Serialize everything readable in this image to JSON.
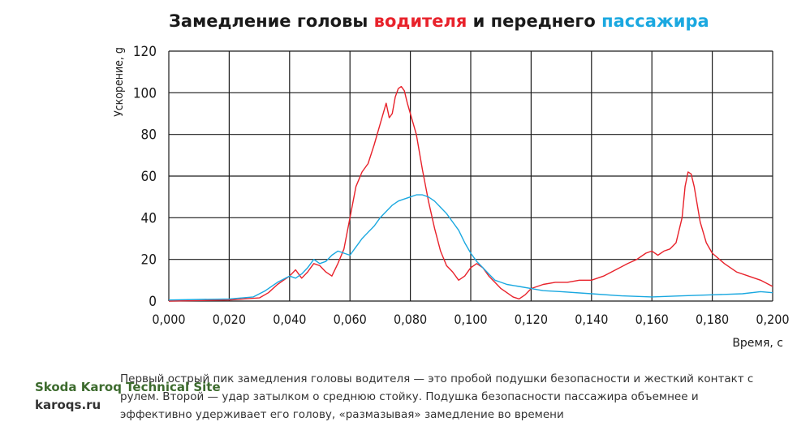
{
  "title": {
    "part1": "Замедление головы ",
    "driver_word": "водителя",
    "part2": " и переднего ",
    "passenger_word": "пассажира"
  },
  "caption": "Первый острый пик замедления головы водителя — это пробой подушки безопасности и жесткий контакт с рулем. Второй — удар затылком о среднюю стойку. Подушка безопасности пассажира объемнее и эффективно удерживает его голову, «размазывая» замедление во времени",
  "watermark": {
    "site": "Skoda Karoq Technical Site",
    "url": "karoqs.ru"
  },
  "colors": {
    "driver": "#e8222b",
    "passenger": "#1aa8e0",
    "grid": "#1a1a1a"
  },
  "chart_data": {
    "type": "line",
    "xlabel": "Время, с",
    "ylabel": "Ускорение, g",
    "xlim": [
      0,
      0.2
    ],
    "ylim": [
      0,
      120
    ],
    "grid": true,
    "x_ticks": [
      "0,000",
      "0,020",
      "0,040",
      "0,060",
      "0,080",
      "0,100",
      "0,120",
      "0,140",
      "0,160",
      "0,180",
      "0,200"
    ],
    "y_ticks": [
      "0",
      "20",
      "40",
      "60",
      "80",
      "100",
      "120"
    ],
    "series": [
      {
        "color": "#e8222b",
        "x": [
          0,
          0.02,
          0.03,
          0.033,
          0.036,
          0.038,
          0.04,
          0.042,
          0.044,
          0.046,
          0.048,
          0.05,
          0.052,
          0.054,
          0.056,
          0.058,
          0.06,
          0.062,
          0.064,
          0.066,
          0.068,
          0.07,
          0.072,
          0.073,
          0.074,
          0.075,
          0.076,
          0.077,
          0.078,
          0.079,
          0.08,
          0.082,
          0.084,
          0.086,
          0.088,
          0.09,
          0.092,
          0.094,
          0.096,
          0.098,
          0.1,
          0.102,
          0.104,
          0.106,
          0.108,
          0.11,
          0.112,
          0.114,
          0.116,
          0.118,
          0.12,
          0.124,
          0.128,
          0.132,
          0.136,
          0.14,
          0.144,
          0.148,
          0.152,
          0.155,
          0.158,
          0.16,
          0.162,
          0.164,
          0.166,
          0.168,
          0.17,
          0.171,
          0.172,
          0.173,
          0.174,
          0.176,
          0.178,
          0.18,
          0.184,
          0.188,
          0.192,
          0.196,
          0.2
        ],
        "y": [
          0,
          0.5,
          1.5,
          4,
          8,
          10,
          12,
          15,
          11,
          14,
          18,
          17,
          14,
          12,
          18,
          25,
          40,
          55,
          62,
          66,
          75,
          85,
          95,
          88,
          90,
          98,
          102,
          103,
          101,
          95,
          90,
          80,
          63,
          48,
          35,
          24,
          17,
          14,
          10,
          12,
          16,
          18,
          16,
          12,
          9,
          6,
          4,
          2,
          1,
          3,
          6,
          8,
          9,
          9,
          10,
          10,
          12,
          15,
          18,
          20,
          23,
          24,
          22,
          24,
          25,
          28,
          40,
          55,
          62,
          61,
          55,
          38,
          28,
          23,
          18,
          14,
          12,
          10,
          7
        ]
      },
      {
        "color": "#1aa8e0",
        "x": [
          0,
          0.02,
          0.028,
          0.032,
          0.036,
          0.04,
          0.042,
          0.044,
          0.046,
          0.048,
          0.05,
          0.052,
          0.054,
          0.056,
          0.058,
          0.06,
          0.062,
          0.064,
          0.066,
          0.068,
          0.07,
          0.072,
          0.074,
          0.076,
          0.078,
          0.08,
          0.082,
          0.084,
          0.086,
          0.088,
          0.09,
          0.092,
          0.094,
          0.096,
          0.098,
          0.1,
          0.102,
          0.104,
          0.106,
          0.108,
          0.11,
          0.112,
          0.116,
          0.12,
          0.124,
          0.13,
          0.14,
          0.15,
          0.16,
          0.17,
          0.18,
          0.19,
          0.196,
          0.2
        ],
        "y": [
          0.5,
          1,
          2,
          5,
          9,
          12,
          11,
          13,
          16,
          20,
          18,
          19,
          22,
          24,
          23,
          22,
          26,
          30,
          33,
          36,
          40,
          43,
          46,
          48,
          49,
          50,
          51,
          51,
          50,
          48,
          45,
          42,
          38,
          34,
          28,
          23,
          19,
          16,
          13,
          10,
          9,
          8,
          7,
          6,
          5,
          4.5,
          3.5,
          2.5,
          2,
          2.5,
          3,
          3.5,
          4.5,
          4
        ]
      }
    ]
  }
}
